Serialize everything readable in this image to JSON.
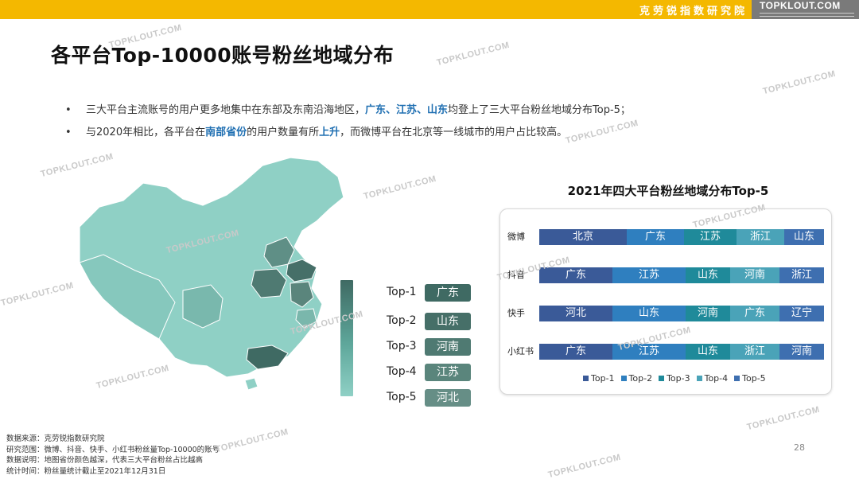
{
  "header": {
    "institute": "克劳锐指数研究院",
    "brand": "TOPKLOUT.COM"
  },
  "title": "各平台Top-10000账号粉丝地域分布",
  "bullets": [
    {
      "pre": "三大平台主流账号的用户更多地集中在东部及东南沿海地区，",
      "hl": "广东、江苏、山东",
      "post": "均登上了三大平台粉丝地域分布Top-5；"
    },
    {
      "pre": "与2020年相比，各平台在",
      "hl1": "南部省份",
      "mid": "的用户数量有所",
      "hl2": "上升",
      "post": "，而微博平台在北京等一线城市的用户占比较高。"
    }
  ],
  "map_ranks": [
    {
      "label": "Top-1",
      "province": "广东",
      "color": "#3f6a63"
    },
    {
      "label": "Top-2",
      "province": "山东",
      "color": "#466f68"
    },
    {
      "label": "Top-3",
      "province": "河南",
      "color": "#4f7a72"
    },
    {
      "label": "Top-4",
      "province": "江苏",
      "color": "#5a857c"
    },
    {
      "label": "Top-5",
      "province": "河北",
      "color": "#668e86"
    }
  ],
  "chart_data": {
    "type": "table",
    "title": "2021年四大平台粉丝地域分布Top-5",
    "series_names": [
      "Top-1",
      "Top-2",
      "Top-3",
      "Top-4",
      "Top-5"
    ],
    "series_colors": [
      "#3a5a98",
      "#2f7fbf",
      "#1f8a9a",
      "#4aa3b8",
      "#3e6fb0"
    ],
    "rows": [
      {
        "platform": "微博",
        "icon": "weibo-icon",
        "values": [
          "北京",
          "广东",
          "江苏",
          "浙江",
          "山东"
        ]
      },
      {
        "platform": "抖音",
        "icon": "douyin-icon",
        "values": [
          "广东",
          "江苏",
          "山东",
          "河南",
          "浙江"
        ]
      },
      {
        "platform": "快手",
        "icon": "kuaishou-icon",
        "values": [
          "河北",
          "山东",
          "河南",
          "广东",
          "辽宁"
        ]
      },
      {
        "platform": "小红书",
        "icon": "xiaohongshu-icon",
        "values": [
          "广东",
          "江苏",
          "山东",
          "浙江",
          "河南"
        ]
      }
    ]
  },
  "footnotes": [
    "数据来源：克劳锐指数研究院",
    "研究范围：微博、抖音、快手、小红书粉丝量Top-10000的账号",
    "数据说明：地图省份颜色越深，代表三大平台粉丝占比越高",
    "统计时间：粉丝量统计截止至2021年12月31日"
  ],
  "page_number": "28",
  "watermark": "TOPKLOUT.COM"
}
